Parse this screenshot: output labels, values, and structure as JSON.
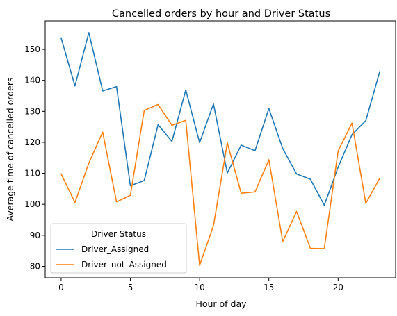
{
  "chart_data": {
    "type": "line",
    "title": "Cancelled orders by hour and Driver Status",
    "xlabel": "Hour of day",
    "ylabel": "Average time of cancelled orders",
    "xlim": [
      -1.15,
      24.15
    ],
    "ylim": [
      76.3,
      159.2
    ],
    "xticks": [
      0,
      5,
      10,
      15,
      20
    ],
    "yticks": [
      80,
      90,
      100,
      110,
      120,
      130,
      140,
      150
    ],
    "grid": false,
    "legend": {
      "title": "Driver Status",
      "placement": "lower-left"
    },
    "x": [
      0,
      1,
      2,
      3,
      4,
      5,
      6,
      7,
      8,
      9,
      10,
      11,
      12,
      13,
      14,
      15,
      16,
      17,
      18,
      19,
      20,
      21,
      22,
      23
    ],
    "series": [
      {
        "name": "Driver_Assigned",
        "color": "#1f77b4",
        "values": [
          153.7,
          138.2,
          155.4,
          136.6,
          138.0,
          106.0,
          107.7,
          125.7,
          120.3,
          136.9,
          119.9,
          132.4,
          110.1,
          119.1,
          117.3,
          130.9,
          118.0,
          109.8,
          108.1,
          99.7,
          112.0,
          122.5,
          127.0,
          142.8
        ]
      },
      {
        "name": "Driver_not_Assigned",
        "color": "#ff7f0e",
        "values": [
          109.8,
          100.6,
          113.3,
          123.3,
          100.8,
          102.9,
          130.3,
          132.2,
          125.5,
          127.1,
          80.3,
          93.1,
          119.8,
          103.6,
          104.0,
          114.4,
          88.0,
          97.7,
          85.8,
          85.7,
          117.2,
          126.2,
          100.3,
          108.4
        ]
      }
    ]
  }
}
